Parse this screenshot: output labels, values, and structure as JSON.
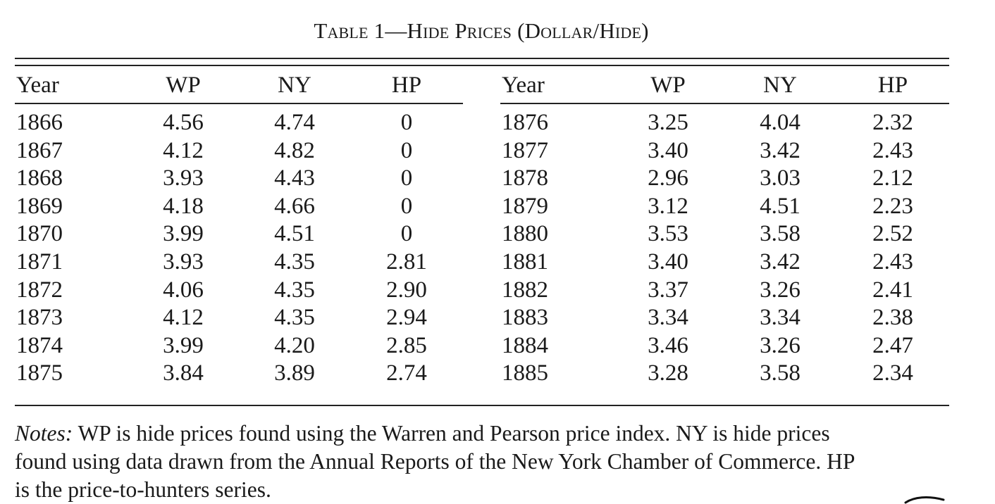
{
  "table": {
    "caption": "Table 1—Hide Prices (Dollar/Hide)",
    "headers": [
      "Year",
      "WP",
      "NY",
      "HP"
    ],
    "left_rows": [
      [
        "1866",
        "4.56",
        "4.74",
        "0"
      ],
      [
        "1867",
        "4.12",
        "4.82",
        "0"
      ],
      [
        "1868",
        "3.93",
        "4.43",
        "0"
      ],
      [
        "1869",
        "4.18",
        "4.66",
        "0"
      ],
      [
        "1870",
        "3.99",
        "4.51",
        "0"
      ],
      [
        "1871",
        "3.93",
        "4.35",
        "2.81"
      ],
      [
        "1872",
        "4.06",
        "4.35",
        "2.90"
      ],
      [
        "1873",
        "4.12",
        "4.35",
        "2.94"
      ],
      [
        "1874",
        "3.99",
        "4.20",
        "2.85"
      ],
      [
        "1875",
        "3.84",
        "3.89",
        "2.74"
      ]
    ],
    "right_rows": [
      [
        "1876",
        "3.25",
        "4.04",
        "2.32"
      ],
      [
        "1877",
        "3.40",
        "3.42",
        "2.43"
      ],
      [
        "1878",
        "2.96",
        "3.03",
        "2.12"
      ],
      [
        "1879",
        "3.12",
        "4.51",
        "2.23"
      ],
      [
        "1880",
        "3.53",
        "3.58",
        "2.52"
      ],
      [
        "1881",
        "3.40",
        "3.42",
        "2.43"
      ],
      [
        "1882",
        "3.37",
        "3.26",
        "2.41"
      ],
      [
        "1883",
        "3.34",
        "3.34",
        "2.38"
      ],
      [
        "1884",
        "3.46",
        "3.26",
        "2.47"
      ],
      [
        "1885",
        "3.28",
        "3.58",
        "2.34"
      ]
    ]
  },
  "notes": {
    "lead": "Notes:",
    "line1": "WP is hide prices found using the Warren and Pearson price index. NY is hide prices",
    "line2": "found using data drawn from the Annual Reports of the New York Chamber of Commerce. HP",
    "line3": "is the price-to-hunters series."
  }
}
